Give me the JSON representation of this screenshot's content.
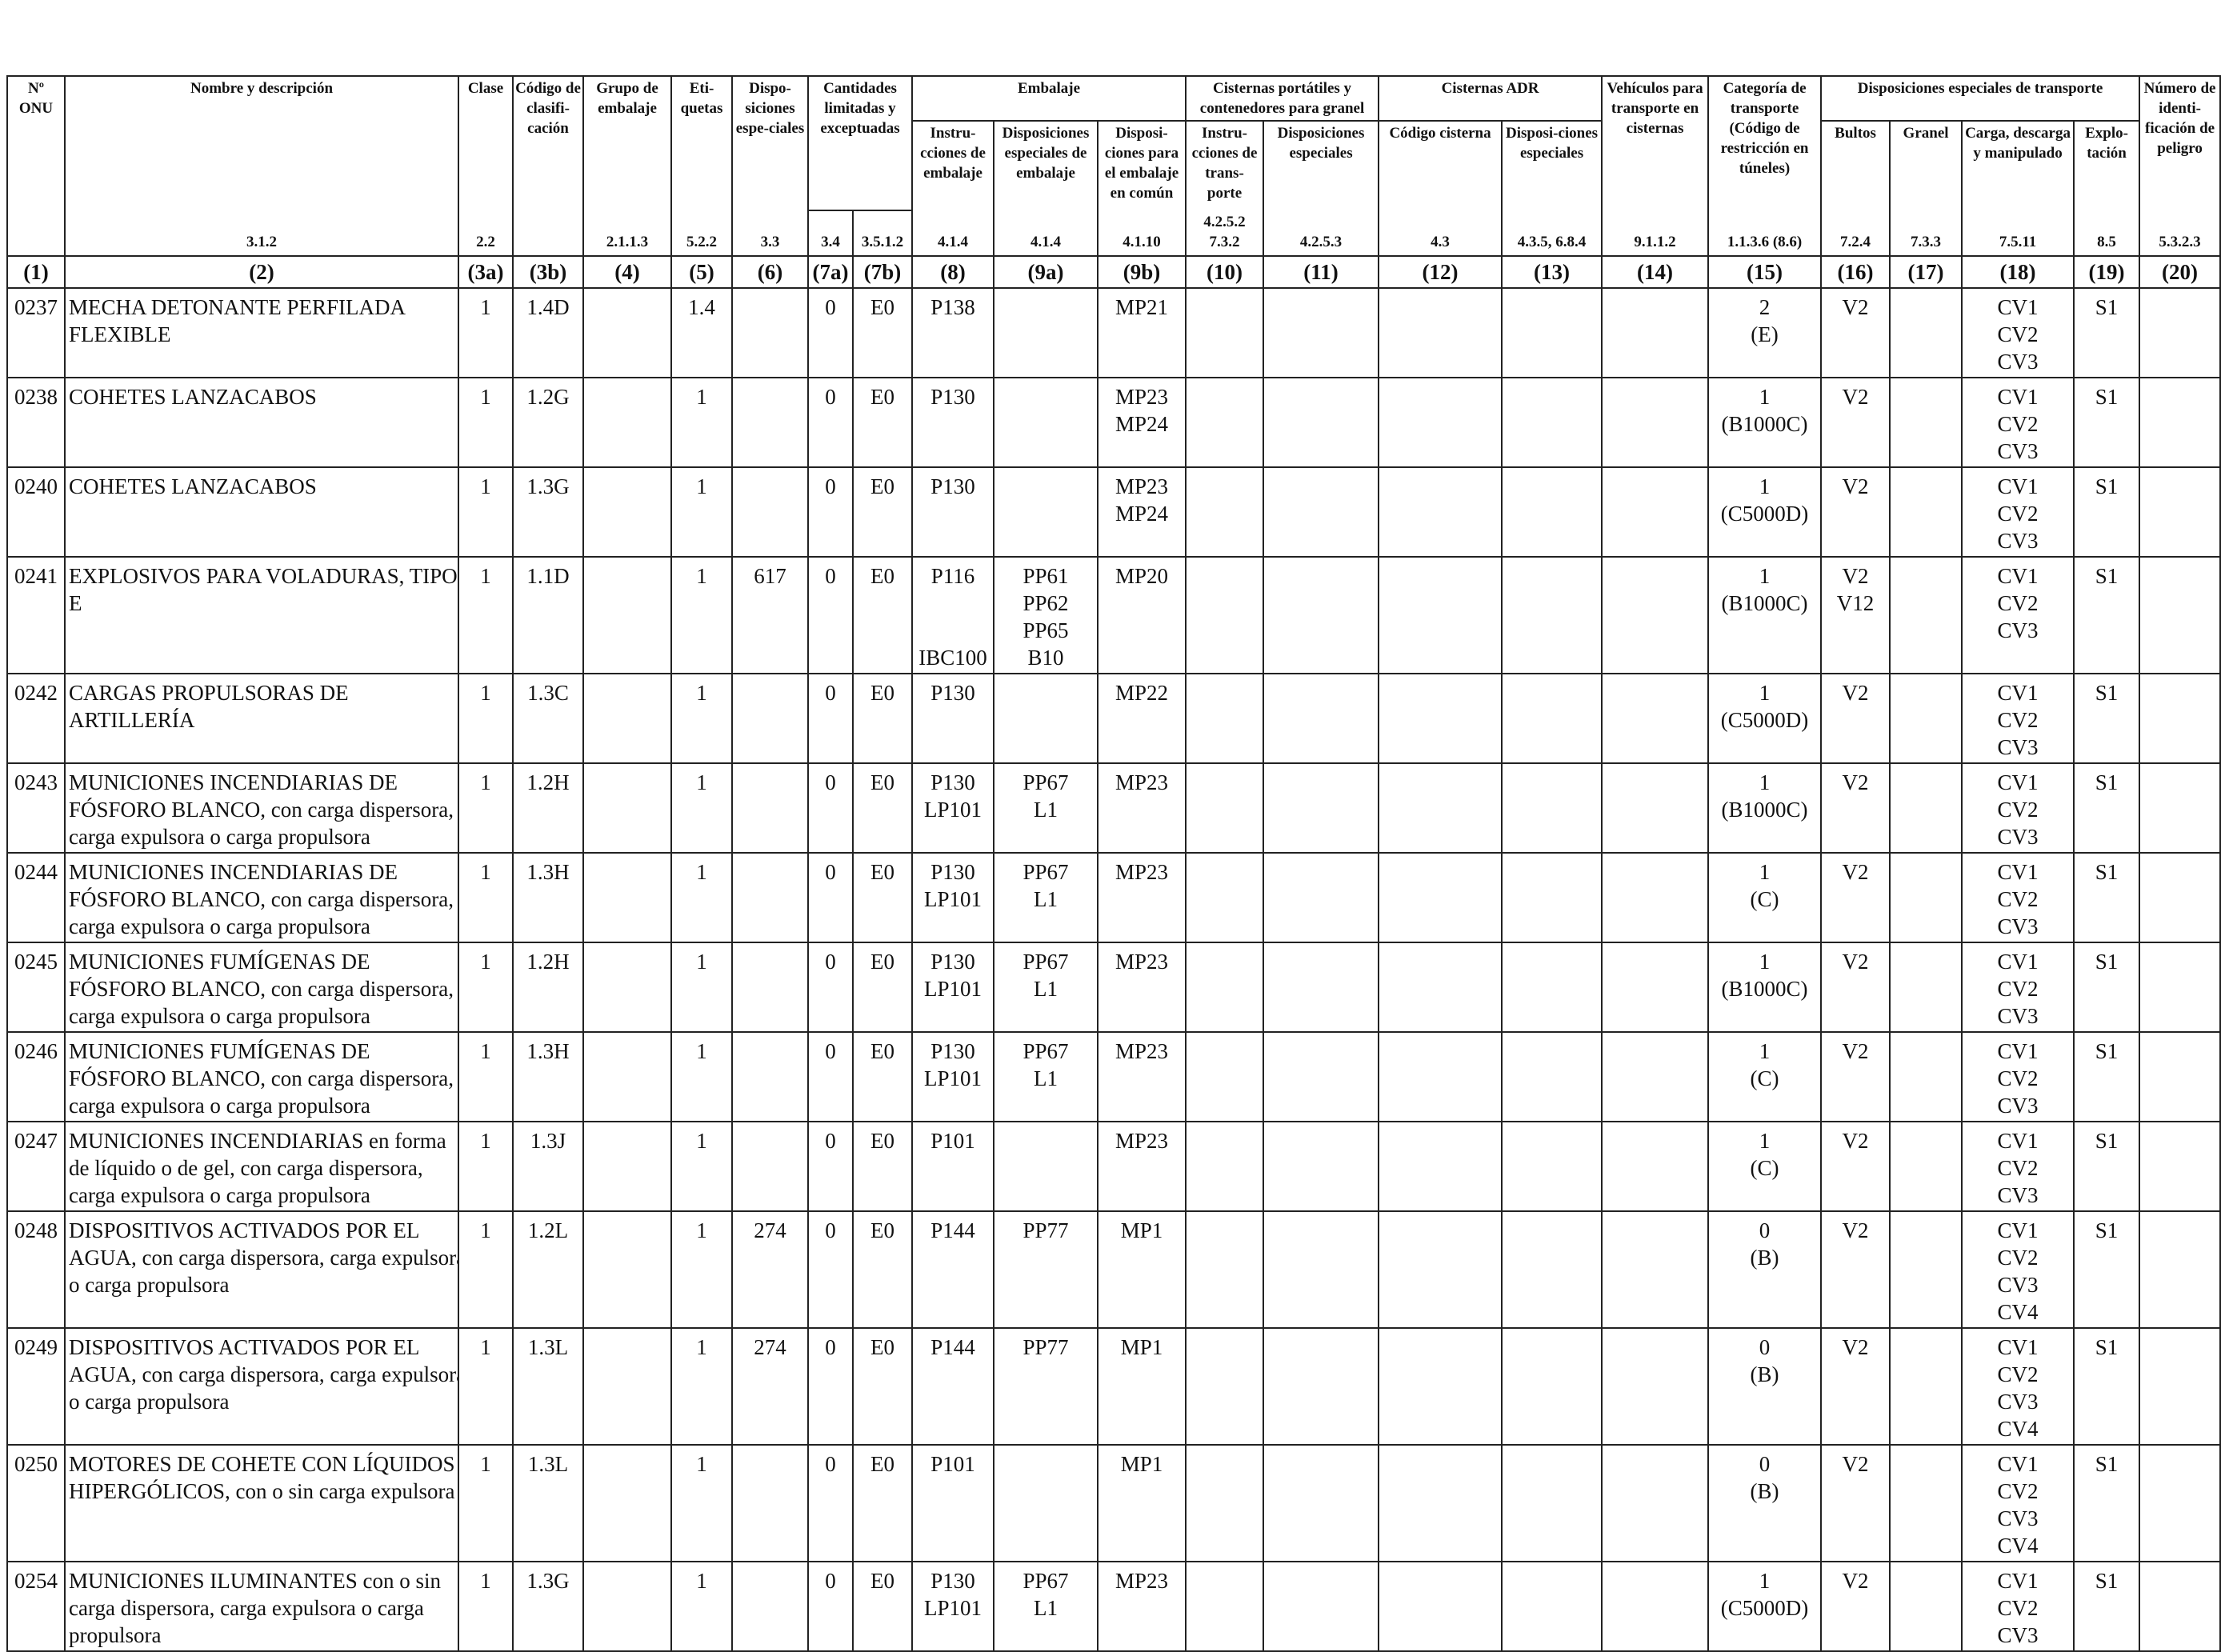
{
  "headers": {
    "col1": "Nº ONU",
    "col2": "Nombre y descripción",
    "col3a": "Clase",
    "col3b": "Código de clasifi-cación",
    "col4": "Grupo de embalaje",
    "col5": "Eti-quetas",
    "col6": "Dispo-siciones espe-ciales",
    "col7": "Cantidades limitadas y exceptuadas",
    "col8to9": "Embalaje",
    "col8": "Instru-cciones de embalaje",
    "col9a": "Disposiciones especiales de embalaje",
    "col9b": "Disposi-ciones para el embalaje en común",
    "col10to11": "Cisternas portátiles y contenedores para granel",
    "col10": "Instru-cciones de trans-porte",
    "col11": "Disposiciones especiales",
    "col12to13": "Cisternas ADR",
    "col12": "Código cisterna",
    "col13": "Disposi-ciones especiales",
    "col14": "Vehículos para transporte en cisternas",
    "col15": "Categoría de transporte (Código de restricción en túneles)",
    "col16to19": "Disposiciones especiales de transporte",
    "col16": "Bultos",
    "col17": "Granel",
    "col18": "Carga, descarga y manipulado",
    "col19": "Explo-tación",
    "col20": "Número de identi-ficación de peligro"
  },
  "sections": {
    "col2": "3.1.2",
    "col3a": "2.2",
    "col4": "2.1.1.3",
    "col5": "5.2.2",
    "col6": "3.3",
    "col7a": "3.4",
    "col7b": "3.5.1.2",
    "col8": "4.1.4",
    "col9a": "4.1.4",
    "col9b": "4.1.10",
    "col10": "4.2.5.2 7.3.2",
    "col11": "4.2.5.3",
    "col12": "4.3",
    "col13": "4.3.5, 6.8.4",
    "col14": "9.1.1.2",
    "col15": "1.1.3.6 (8.6)",
    "col16": "7.2.4",
    "col17": "7.3.3",
    "col18": "7.5.11",
    "col19": "8.5",
    "col20": "5.3.2.3"
  },
  "column_numbers": [
    "(1)",
    "(2)",
    "(3a)",
    "(3b)",
    "(4)",
    "(5)",
    "(6)",
    "(7a)",
    "(7b)",
    "(8)",
    "(9a)",
    "(9b)",
    "(10)",
    "(11)",
    "(12)",
    "(13)",
    "(14)",
    "(15)",
    "(16)",
    "(17)",
    "(18)",
    "(19)",
    "(20)"
  ],
  "rows": [
    {
      "un": "0237",
      "name": [
        "MECHA DETONANTE PERFILADA",
        "FLEXIBLE"
      ],
      "clase": "1",
      "codigo": "1.4D",
      "etiquetas": "1.4",
      "disp": "",
      "c7a": "0",
      "c7b": "E0",
      "instr": [
        "P138"
      ],
      "disp_emb": [],
      "comun": "MP21",
      "cat": "2",
      "tunel": "(E)",
      "bultos": [
        "V2"
      ],
      "carga": [
        "CV1",
        "CV2",
        "CV3"
      ],
      "explo": "S1"
    },
    {
      "un": "0238",
      "name": [
        "COHETES LANZACABOS"
      ],
      "clase": "1",
      "codigo": "1.2G",
      "etiquetas": "1",
      "disp": "",
      "c7a": "0",
      "c7b": "E0",
      "instr": [
        "P130"
      ],
      "disp_emb": [],
      "comun": "MP23 MP24",
      "cat": "1",
      "tunel": "(B1000C)",
      "bultos": [
        "V2"
      ],
      "carga": [
        "CV1",
        "CV2",
        "CV3"
      ],
      "explo": "S1"
    },
    {
      "un": "0240",
      "name": [
        "COHETES LANZACABOS"
      ],
      "clase": "1",
      "codigo": "1.3G",
      "etiquetas": "1",
      "disp": "",
      "c7a": "0",
      "c7b": "E0",
      "instr": [
        "P130"
      ],
      "disp_emb": [],
      "comun": "MP23 MP24",
      "cat": "1",
      "tunel": "(C5000D)",
      "bultos": [
        "V2"
      ],
      "carga": [
        "CV1",
        "CV2",
        "CV3"
      ],
      "explo": "S1"
    },
    {
      "un": "0241",
      "name": [
        "EXPLOSIVOS PARA VOLADURAS, TIPO",
        "E"
      ],
      "clase": "1",
      "codigo": "1.1D",
      "etiquetas": "1",
      "disp": "617",
      "c7a": "0",
      "c7b": "E0",
      "instr": [
        "P116",
        "",
        "",
        "IBC100"
      ],
      "disp_emb": [
        "PP61",
        "PP62",
        "PP65",
        "B10"
      ],
      "comun": "MP20",
      "cat": "1",
      "tunel": "(B1000C)",
      "bultos": [
        "V2",
        "V12"
      ],
      "carga": [
        "CV1",
        "CV2",
        "CV3"
      ],
      "explo": "S1"
    },
    {
      "un": "0242",
      "name": [
        "CARGAS PROPULSORAS DE",
        "ARTILLERÍA"
      ],
      "clase": "1",
      "codigo": "1.3C",
      "etiquetas": "1",
      "disp": "",
      "c7a": "0",
      "c7b": "E0",
      "instr": [
        "P130"
      ],
      "disp_emb": [],
      "comun": "MP22",
      "cat": "1",
      "tunel": "(C5000D)",
      "bultos": [
        "V2"
      ],
      "carga": [
        "CV1",
        "CV2",
        "CV3"
      ],
      "explo": "S1"
    },
    {
      "un": "0243",
      "name": [
        "MUNICIONES INCENDIARIAS DE",
        "FÓSFORO BLANCO, con carga dispersora,",
        "carga expulsora o carga propulsora"
      ],
      "clase": "1",
      "codigo": "1.2H",
      "etiquetas": "1",
      "disp": "",
      "c7a": "0",
      "c7b": "E0",
      "instr": [
        "P130",
        "LP101"
      ],
      "disp_emb": [
        "PP67",
        "L1"
      ],
      "comun": "MP23",
      "cat": "1",
      "tunel": "(B1000C)",
      "bultos": [
        "V2"
      ],
      "carga": [
        "CV1",
        "CV2",
        "CV3"
      ],
      "explo": "S1"
    },
    {
      "un": "0244",
      "name": [
        "MUNICIONES INCENDIARIAS DE",
        "FÓSFORO BLANCO, con carga dispersora,",
        "carga expulsora o carga propulsora"
      ],
      "clase": "1",
      "codigo": "1.3H",
      "etiquetas": "1",
      "disp": "",
      "c7a": "0",
      "c7b": "E0",
      "instr": [
        "P130",
        "LP101"
      ],
      "disp_emb": [
        "PP67",
        "L1"
      ],
      "comun": "MP23",
      "cat": "1",
      "tunel": "(C)",
      "bultos": [
        "V2"
      ],
      "carga": [
        "CV1",
        "CV2",
        "CV3"
      ],
      "explo": "S1"
    },
    {
      "un": "0245",
      "name": [
        "MUNICIONES FUMÍGENAS DE",
        "FÓSFORO BLANCO, con carga dispersora,",
        "carga expulsora o carga propulsora"
      ],
      "clase": "1",
      "codigo": "1.2H",
      "etiquetas": "1",
      "disp": "",
      "c7a": "0",
      "c7b": "E0",
      "instr": [
        "P130",
        "LP101"
      ],
      "disp_emb": [
        "PP67",
        "L1"
      ],
      "comun": "MP23",
      "cat": "1",
      "tunel": "(B1000C)",
      "bultos": [
        "V2"
      ],
      "carga": [
        "CV1",
        "CV2",
        "CV3"
      ],
      "explo": "S1"
    },
    {
      "un": "0246",
      "name": [
        "MUNICIONES FUMÍGENAS DE",
        "FÓSFORO BLANCO, con carga dispersora,",
        "carga expulsora o carga propulsora"
      ],
      "clase": "1",
      "codigo": "1.3H",
      "etiquetas": "1",
      "disp": "",
      "c7a": "0",
      "c7b": "E0",
      "instr": [
        "P130",
        "LP101"
      ],
      "disp_emb": [
        "PP67",
        "L1"
      ],
      "comun": "MP23",
      "cat": "1",
      "tunel": "(C)",
      "bultos": [
        "V2"
      ],
      "carga": [
        "CV1",
        "CV2",
        "CV3"
      ],
      "explo": "S1"
    },
    {
      "un": "0247",
      "name": [
        "MUNICIONES INCENDIARIAS en forma",
        "de líquido o de gel, con carga dispersora,",
        "carga expulsora o carga propulsora"
      ],
      "clase": "1",
      "codigo": "1.3J",
      "etiquetas": "1",
      "disp": "",
      "c7a": "0",
      "c7b": "E0",
      "instr": [
        "P101"
      ],
      "disp_emb": [],
      "comun": "MP23",
      "cat": "1",
      "tunel": "(C)",
      "bultos": [
        "V2"
      ],
      "carga": [
        "CV1",
        "CV2",
        "CV3"
      ],
      "explo": "S1"
    },
    {
      "un": "0248",
      "name": [
        "DISPOSITIVOS ACTIVADOS POR EL",
        "AGUA, con carga dispersora, carga expulsora",
        "o carga propulsora"
      ],
      "clase": "1",
      "codigo": "1.2L",
      "etiquetas": "1",
      "disp": "274",
      "c7a": "0",
      "c7b": "E0",
      "instr": [
        "P144"
      ],
      "disp_emb": [
        "PP77"
      ],
      "comun": "MP1",
      "cat": "0",
      "tunel": "(B)",
      "bultos": [
        "V2"
      ],
      "carga": [
        "CV1",
        "CV2",
        "CV3",
        "CV4"
      ],
      "explo": "S1"
    },
    {
      "un": "0249",
      "name": [
        "DISPOSITIVOS ACTIVADOS POR EL",
        "AGUA, con carga dispersora, carga expulsora",
        "o carga propulsora"
      ],
      "clase": "1",
      "codigo": "1.3L",
      "etiquetas": "1",
      "disp": "274",
      "c7a": "0",
      "c7b": "E0",
      "instr": [
        "P144"
      ],
      "disp_emb": [
        "PP77"
      ],
      "comun": "MP1",
      "cat": "0",
      "tunel": "(B)",
      "bultos": [
        "V2"
      ],
      "carga": [
        "CV1",
        "CV2",
        "CV3",
        "CV4"
      ],
      "explo": "S1"
    },
    {
      "un": "0250",
      "name": [
        "MOTORES DE COHETE CON LÍQUIDOS",
        "HIPERGÓLICOS, con o sin carga expulsora"
      ],
      "clase": "1",
      "codigo": "1.3L",
      "etiquetas": "1",
      "disp": "",
      "c7a": "0",
      "c7b": "E0",
      "instr": [
        "P101"
      ],
      "disp_emb": [],
      "comun": "MP1",
      "cat": "0",
      "tunel": "(B)",
      "bultos": [
        "V2"
      ],
      "carga": [
        "CV1",
        "CV2",
        "CV3",
        "CV4"
      ],
      "explo": "S1"
    },
    {
      "un": "0254",
      "name": [
        "MUNICIONES ILUMINANTES con o sin",
        "carga dispersora, carga expulsora o carga",
        "propulsora"
      ],
      "clase": "1",
      "codigo": "1.3G",
      "etiquetas": "1",
      "disp": "",
      "c7a": "0",
      "c7b": "E0",
      "instr": [
        "P130",
        "LP101"
      ],
      "disp_emb": [
        "PP67",
        "L1"
      ],
      "comun": "MP23",
      "cat": "1",
      "tunel": "(C5000D)",
      "bultos": [
        "V2"
      ],
      "carga": [
        "CV1",
        "CV2",
        "CV3"
      ],
      "explo": "S1"
    }
  ]
}
